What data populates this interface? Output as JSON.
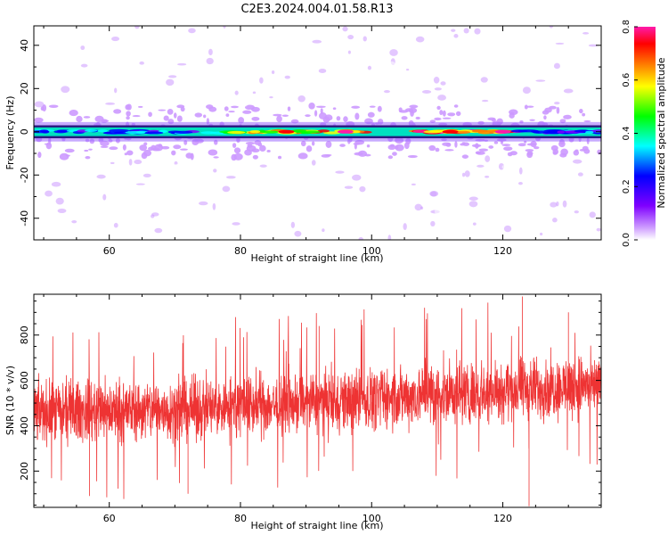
{
  "figure": {
    "title": "C2E3.2024.004.01.58.R13"
  },
  "chart_data": [
    {
      "type": "heatmap",
      "xlabel": "Height of straight line (km)",
      "ylabel": "Frequency (Hz)",
      "xlim": [
        48.5,
        135
      ],
      "ylim": [
        -50,
        49
      ],
      "xticks": [
        60,
        80,
        100,
        120
      ],
      "yticks": [
        -40,
        -20,
        0,
        20,
        40
      ],
      "colorbar": {
        "label": "Normalized spectral amplitude",
        "range": [
          0.0,
          0.8
        ],
        "ticks": [
          "0.0",
          "0.2",
          "0.4",
          "0.6",
          "0.8"
        ],
        "colors": [
          "#ffffff",
          "#cc99ff",
          "#7f00ff",
          "#0000ff",
          "#00ffff",
          "#00ff00",
          "#ffff00",
          "#ff8000",
          "#ff0000",
          "#ff1aaa"
        ]
      },
      "band": {
        "center_hz": 0,
        "halfwidth_hz": 3,
        "segments": [
          {
            "x": [
              48.5,
              78
            ],
            "level": 0.3
          },
          {
            "x": [
              78,
              100
            ],
            "level": 0.6
          },
          {
            "x": [
              107,
              122
            ],
            "level": 0.7
          },
          {
            "x": [
              122,
              135
            ],
            "level": 0.3
          }
        ],
        "peaks": [
          {
            "x": 87,
            "level": 0.75
          },
          {
            "x": 96,
            "level": 0.8
          },
          {
            "x": 112,
            "level": 0.75
          },
          {
            "x": 120,
            "level": 0.8
          }
        ]
      }
    },
    {
      "type": "line",
      "xlabel": "Height of straight line (km)",
      "ylabel": "SNR (10 * v/v)",
      "xlim": [
        48.5,
        135
      ],
      "ylim": [
        40,
        980
      ],
      "xticks": [
        60,
        80,
        100,
        120
      ],
      "yticks": [
        200,
        400,
        600,
        800
      ],
      "series": [
        {
          "color": "#ee3333",
          "trend": [
            {
              "x": 48.5,
              "y": 460
            },
            {
              "x": 70,
              "y": 470
            },
            {
              "x": 90,
              "y": 500
            },
            {
              "x": 110,
              "y": 540
            },
            {
              "x": 135,
              "y": 580
            }
          ],
          "spread": 110,
          "max_spikes": [
            {
              "x": 92,
              "y": 840
            },
            {
              "x": 123,
              "y": 970
            },
            {
              "x": 130,
              "y": 900
            }
          ],
          "min_spikes": [
            {
              "x": 57,
              "y": 90
            },
            {
              "x": 72,
              "y": 100
            },
            {
              "x": 124,
              "y": 45
            }
          ]
        }
      ]
    }
  ]
}
